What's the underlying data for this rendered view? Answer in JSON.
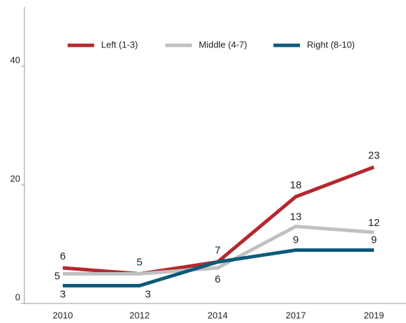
{
  "chart_data": {
    "type": "line",
    "categories": [
      "2010",
      "2012",
      "2014",
      "2017",
      "2019"
    ],
    "series": [
      {
        "name": "Left (1-3)",
        "color": "#b5282e",
        "values": [
          6,
          5,
          7,
          18,
          23
        ],
        "value_labels": [
          "6",
          "5",
          "7",
          "18",
          "23"
        ]
      },
      {
        "name": "Middle (4-7)",
        "color": "#c0c0c0",
        "values": [
          5,
          5,
          6,
          13,
          12
        ],
        "value_labels": [
          "5",
          null,
          "6",
          "13",
          "12"
        ]
      },
      {
        "name": "Right (8-10)",
        "color": "#0d5a7a",
        "values": [
          3,
          3,
          7,
          9,
          9
        ],
        "value_labels": [
          "3",
          "3",
          null,
          "9",
          "9"
        ]
      }
    ],
    "ylim": [
      0,
      50
    ],
    "yticks": [
      0,
      20,
      40
    ],
    "legend": "top"
  }
}
